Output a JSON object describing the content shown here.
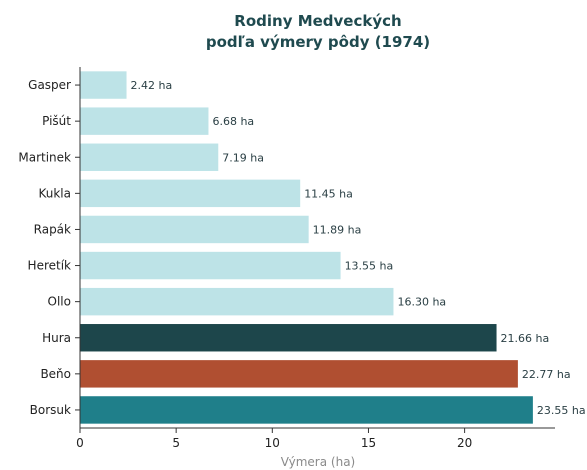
{
  "chart_data": {
    "type": "bar",
    "orientation": "horizontal",
    "title_line1": "Rodiny Medveckých",
    "title_line2": "podľa výmery pôdy (1974)",
    "xlabel": "Výmera (ha)",
    "ylabel": "",
    "xlim": [
      0,
      24.7
    ],
    "xticks": [
      "0",
      "5",
      "10",
      "15",
      "20"
    ],
    "grid": false,
    "categories": [
      "Gasper",
      "Pišút",
      "Martinek",
      "Kukla",
      "Rapák",
      "Heretík",
      "Ollo",
      "Hura",
      "Beňo",
      "Borsuk"
    ],
    "values": [
      2.42,
      6.68,
      7.19,
      11.45,
      11.89,
      13.55,
      16.3,
      21.66,
      22.77,
      23.55
    ],
    "value_labels": [
      "2.42 ha",
      "6.68 ha",
      "7.19 ha",
      "11.45 ha",
      "11.89 ha",
      "13.55 ha",
      "16.30 ha",
      "21.66 ha",
      "22.77 ha",
      "23.55 ha"
    ],
    "colors": [
      "#bde3e7",
      "#bde3e7",
      "#bde3e7",
      "#bde3e7",
      "#bde3e7",
      "#bde3e7",
      "#bde3e7",
      "#1d464b",
      "#b04f31",
      "#1f7f8a"
    ]
  }
}
